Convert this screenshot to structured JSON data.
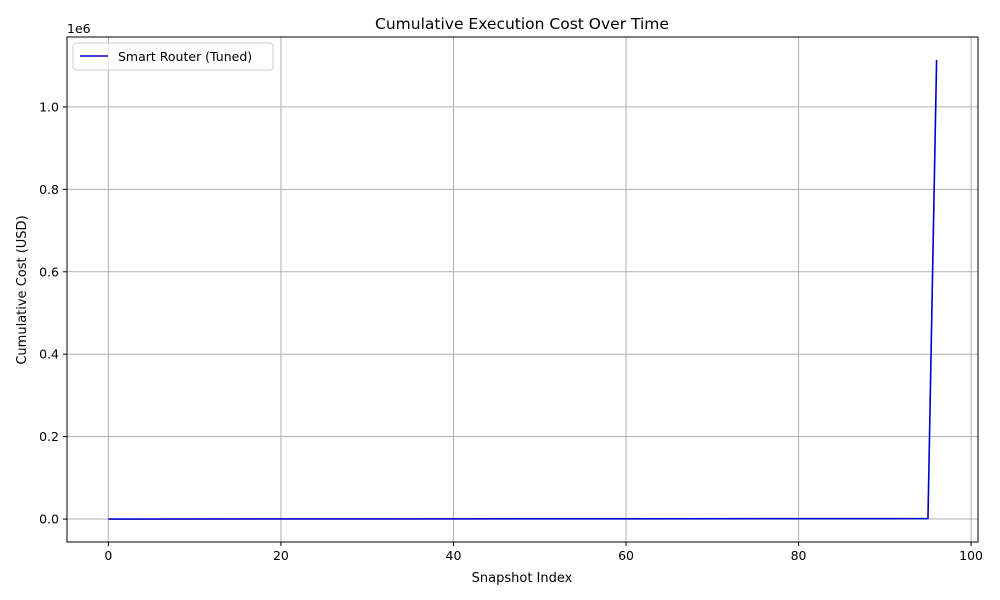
{
  "chart_data": {
    "type": "line",
    "title": "Cumulative Execution Cost Over Time",
    "xlabel": "Snapshot Index",
    "ylabel": "Cumulative Cost (USD)",
    "y_offset_text": "1e6",
    "xlim": [
      -4.8,
      100.8
    ],
    "ylim": [
      -0.0557,
      1.1697
    ],
    "x_ticks": [
      0,
      20,
      40,
      60,
      80,
      100
    ],
    "y_ticks": [
      0.0,
      0.2,
      0.4,
      0.6,
      0.8,
      1.0
    ],
    "y_tick_labels": [
      "0.0",
      "0.2",
      "0.4",
      "0.6",
      "0.8",
      "1.0"
    ],
    "grid": true,
    "legend_position": "upper-left",
    "series": [
      {
        "name": "Smart Router (Tuned)",
        "color": "#0000cc",
        "x": [
          0,
          95,
          96
        ],
        "y": [
          0,
          0.001,
          1.114
        ]
      }
    ]
  }
}
